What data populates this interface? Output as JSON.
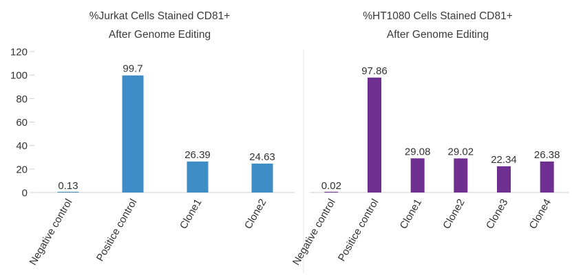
{
  "chart_data": [
    {
      "type": "bar",
      "title": "%Jurkat Cells Stained CD81+",
      "subtitle": "After Genome Editing",
      "categories": [
        "Negative control",
        "Positice control",
        "Clone1",
        "Clone2"
      ],
      "values": [
        0.13,
        99.7,
        26.39,
        24.63
      ],
      "value_labels": [
        "0.13",
        "99.7",
        "26.39",
        "24.63"
      ],
      "ylim": [
        0,
        120
      ],
      "yticks": [
        0,
        20,
        40,
        60,
        80,
        100,
        120
      ],
      "ytick_labels": [
        "0",
        "20",
        "40",
        "60",
        "80",
        "100",
        "120"
      ],
      "grid": false,
      "color": "#3f8dc6"
    },
    {
      "type": "bar",
      "title": "%HT1080 Cells Stained CD81+",
      "subtitle": "After Genome Editing",
      "categories": [
        "Negative control",
        "Positice control",
        "Clone1",
        "Clone2",
        "Clone3",
        "Clone4"
      ],
      "values": [
        0.02,
        97.86,
        29.08,
        29.02,
        22.34,
        26.38
      ],
      "value_labels": [
        "0.02",
        "97.86",
        "29.08",
        "29.02",
        "22.34",
        "26.38"
      ],
      "ylim": [
        0,
        120
      ],
      "grid": false,
      "color": "#6e2f91"
    }
  ]
}
